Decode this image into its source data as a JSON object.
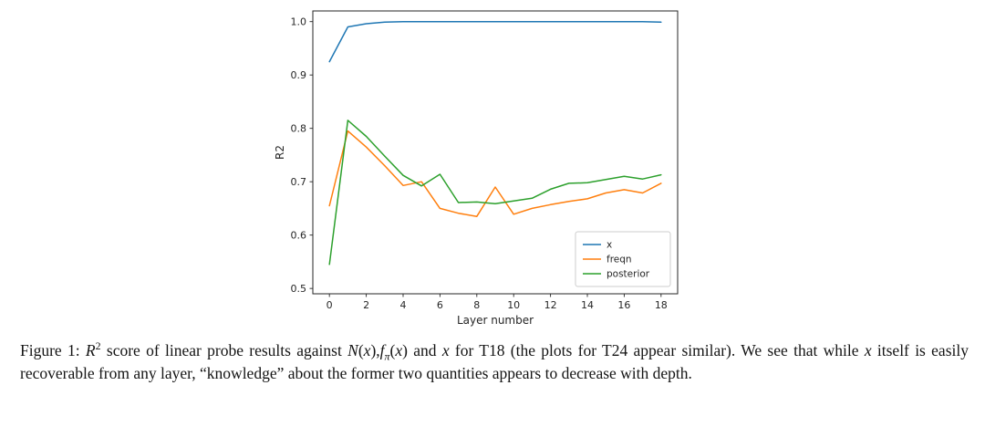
{
  "figure": {
    "caption_segments": [
      {
        "text": "Figure 1: ",
        "style": "normal"
      },
      {
        "text": "R",
        "style": "italic"
      },
      {
        "text": "2",
        "style": "sup"
      },
      {
        "text": " score of linear probe results against ",
        "style": "normal"
      },
      {
        "text": "N",
        "style": "italic"
      },
      {
        "text": "(",
        "style": "normal"
      },
      {
        "text": "x",
        "style": "italic"
      },
      {
        "text": "),",
        "style": "normal"
      },
      {
        "text": "f",
        "style": "italic"
      },
      {
        "text": "π",
        "style": "sub"
      },
      {
        "text": "(",
        "style": "normal"
      },
      {
        "text": "x",
        "style": "italic"
      },
      {
        "text": ") and ",
        "style": "normal"
      },
      {
        "text": "x",
        "style": "italic"
      },
      {
        "text": " for T18 (the plots for T24 appear similar). We see that while ",
        "style": "normal"
      },
      {
        "text": "x",
        "style": "italic"
      },
      {
        "text": " itself is easily recoverable from any layer, “knowledge” about the former two quantities appears to decrease with depth.",
        "style": "normal"
      }
    ]
  },
  "chart_data": {
    "type": "line",
    "title": "",
    "xlabel": "Layer number",
    "ylabel": "R2",
    "xlim": [
      -0.9,
      18.9
    ],
    "ylim": [
      0.49,
      1.02
    ],
    "xticks": [
      0,
      2,
      4,
      6,
      8,
      10,
      12,
      14,
      16,
      18
    ],
    "yticks": [
      0.5,
      0.6,
      0.7,
      0.8,
      0.9,
      1.0
    ],
    "grid": false,
    "legend_position": "lower right",
    "x": [
      0,
      1,
      2,
      3,
      4,
      5,
      6,
      7,
      8,
      9,
      10,
      11,
      12,
      13,
      14,
      15,
      16,
      17,
      18
    ],
    "series": [
      {
        "name": "x",
        "color": "#1f77b4",
        "values": [
          0.925,
          0.99,
          0.996,
          0.999,
          1.0,
          1.0,
          1.0,
          1.0,
          1.0,
          1.0,
          1.0,
          1.0,
          1.0,
          1.0,
          1.0,
          1.0,
          1.0,
          1.0,
          0.999
        ]
      },
      {
        "name": "freqn",
        "color": "#ff7f0e",
        "values": [
          0.655,
          0.795,
          0.765,
          0.73,
          0.693,
          0.7,
          0.65,
          0.641,
          0.635,
          0.69,
          0.639,
          0.65,
          0.657,
          0.663,
          0.668,
          0.679,
          0.685,
          0.679,
          0.697
        ]
      },
      {
        "name": "posterior",
        "color": "#2ca02c",
        "values": [
          0.545,
          0.815,
          0.785,
          0.748,
          0.712,
          0.692,
          0.714,
          0.661,
          0.662,
          0.659,
          0.664,
          0.669,
          0.686,
          0.697,
          0.698,
          0.704,
          0.71,
          0.705,
          0.713
        ]
      }
    ]
  }
}
